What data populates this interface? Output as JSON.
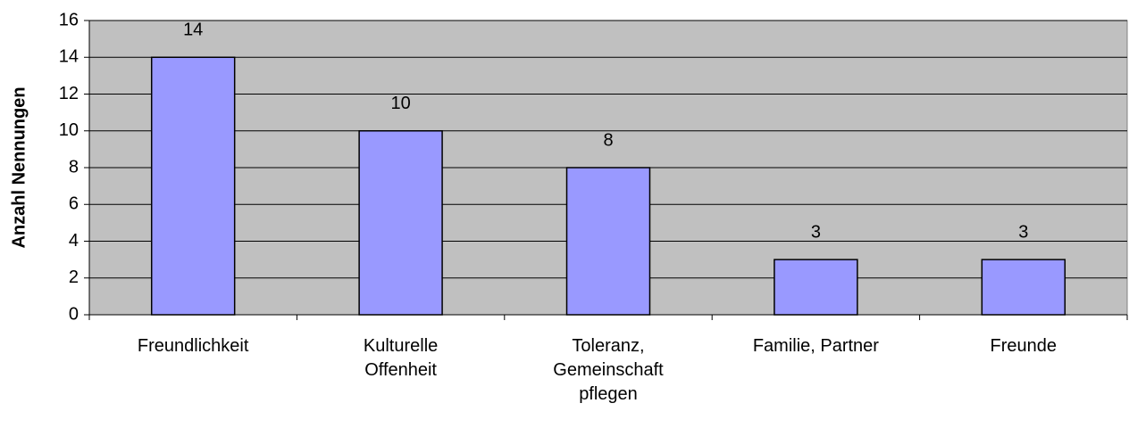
{
  "chart_data": {
    "type": "bar",
    "y_label": "Anzahl Nennungen",
    "categories": [
      "Freundlichkeit",
      "Kulturelle\nOffenheit",
      "Toleranz,\nGemeinschaft\npflegen",
      "Familie, Partner",
      "Freunde"
    ],
    "values": [
      14,
      10,
      8,
      3,
      3
    ],
    "color": "#9999ff",
    "ylim": [
      0,
      16
    ],
    "yticks": [
      0,
      2,
      4,
      6,
      8,
      10,
      12,
      14,
      16
    ],
    "grid": true
  }
}
